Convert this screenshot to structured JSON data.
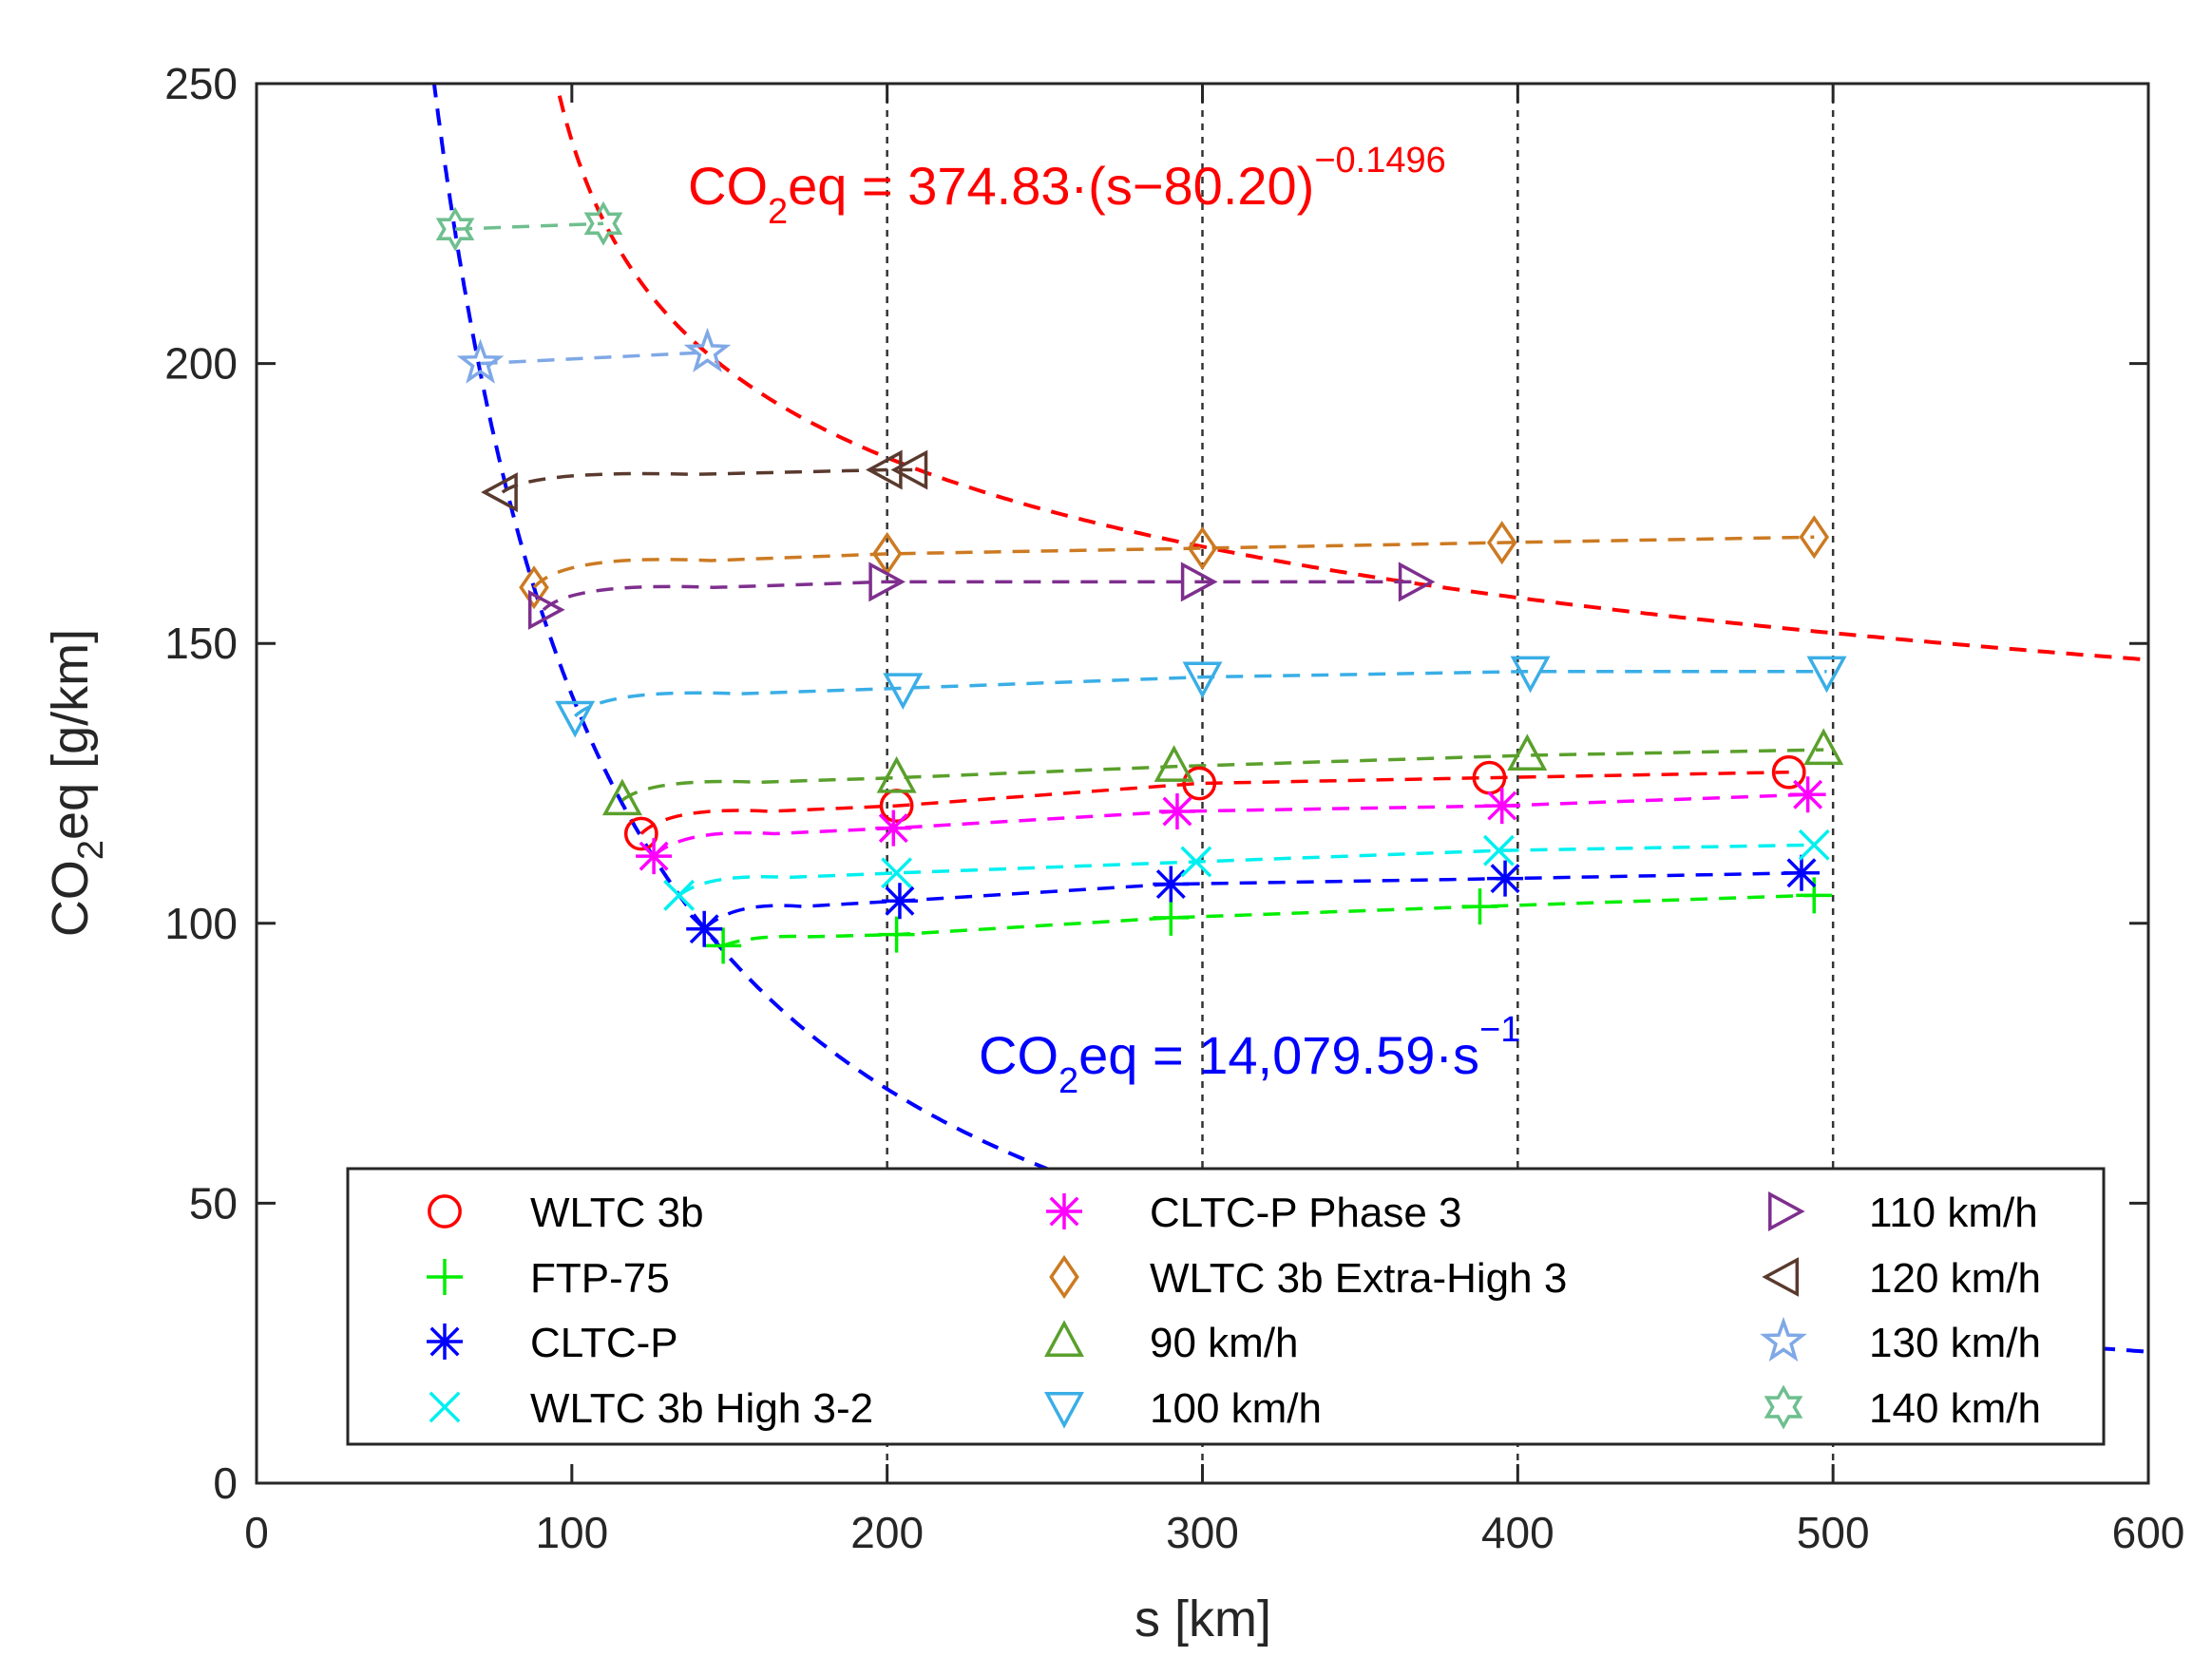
{
  "chart_data": {
    "type": "line",
    "xlabel": "s [km]",
    "ylabel_main": "CO",
    "ylabel_sub": "2",
    "ylabel_rest": "eq [g/km]",
    "xlim": [
      0,
      600
    ],
    "ylim": [
      0,
      250
    ],
    "xticks": [
      0,
      100,
      200,
      300,
      400,
      500,
      600
    ],
    "yticks": [
      0,
      50,
      100,
      150,
      200,
      250
    ],
    "vertical_reference_lines": [
      200,
      300,
      400,
      500
    ],
    "fits": [
      {
        "name": "",
        "color": "#ff0000",
        "formula": "374.83*(s-80.20)^-0.1496",
        "label_main": "CO",
        "label_sub": "2",
        "label_mid": "eq = 374.83·(s−80.20)",
        "label_sup": "−0.1496"
      },
      {
        "name": "",
        "color": "#0000ff",
        "formula": "14079.59*s^-1",
        "label_main": "CO",
        "label_sub": "2",
        "label_mid": "eq = 14,079.59·s",
        "label_sup": "−1"
      }
    ],
    "legend_position": "bottom",
    "series": [
      {
        "name": "WLTC 3b",
        "marker": "circle",
        "color": "#ff0000",
        "points": [
          [
            122,
            116
          ],
          [
            203,
            121
          ],
          [
            299,
            125
          ],
          [
            391,
            126
          ],
          [
            486,
            127
          ]
        ]
      },
      {
        "name": "FTP-75",
        "marker": "plus",
        "color": "#00ee00",
        "points": [
          [
            148,
            96
          ],
          [
            203,
            98
          ],
          [
            290,
            101
          ],
          [
            388,
            103
          ],
          [
            494,
            105
          ]
        ]
      },
      {
        "name": "CLTC-P",
        "marker": "asterisk",
        "color": "#0000ff",
        "points": [
          [
            142,
            99
          ],
          [
            204,
            104
          ],
          [
            290,
            107
          ],
          [
            396,
            108
          ],
          [
            490,
            109
          ]
        ]
      },
      {
        "name": "WLTC 3b High 3-2",
        "marker": "x",
        "color": "#00f0f0",
        "points": [
          [
            134,
            105
          ],
          [
            203,
            109
          ],
          [
            298,
            111
          ],
          [
            394,
            113
          ],
          [
            494,
            114
          ]
        ]
      },
      {
        "name": "CLTC-P Phase 3",
        "marker": "asterisk",
        "color": "#ff00ff",
        "points": [
          [
            126,
            112
          ],
          [
            202,
            117
          ],
          [
            292,
            120
          ],
          [
            395,
            121
          ],
          [
            492,
            123
          ]
        ]
      },
      {
        "name": "WLTC 3b Extra-High 3",
        "marker": "diamond",
        "color": "#cc7a22",
        "points": [
          [
            88,
            160
          ],
          [
            200,
            166
          ],
          [
            300,
            167
          ],
          [
            395,
            168
          ],
          [
            494,
            169
          ]
        ]
      },
      {
        "name": "90 km/h",
        "marker": "triangle-up",
        "color": "#5aa02c",
        "points": [
          [
            116,
            122
          ],
          [
            203,
            126
          ],
          [
            291,
            128
          ],
          [
            403,
            130
          ],
          [
            497,
            131
          ]
        ]
      },
      {
        "name": "100 km/h",
        "marker": "triangle-down",
        "color": "#3aaee6",
        "points": [
          [
            101,
            137
          ],
          [
            205,
            142
          ],
          [
            300,
            144
          ],
          [
            404,
            145
          ],
          [
            498,
            145
          ]
        ]
      },
      {
        "name": "110 km/h",
        "marker": "triangle-right",
        "color": "#7e2f8e",
        "points": [
          [
            91,
            156
          ],
          [
            199,
            161
          ],
          [
            298,
            161
          ],
          [
            367,
            161
          ]
        ]
      },
      {
        "name": "120 km/h",
        "marker": "triangle-left",
        "color": "#5a3a2e",
        "points": [
          [
            78,
            177
          ],
          [
            200,
            181
          ],
          [
            208,
            181
          ]
        ]
      },
      {
        "name": "130 km/h",
        "marker": "star5",
        "color": "#7fa8e6",
        "points": [
          [
            71,
            200
          ],
          [
            143,
            202
          ]
        ]
      },
      {
        "name": "140 km/h",
        "marker": "star6",
        "color": "#6fbf8f",
        "points": [
          [
            63,
            224
          ],
          [
            110,
            225
          ]
        ]
      }
    ]
  }
}
